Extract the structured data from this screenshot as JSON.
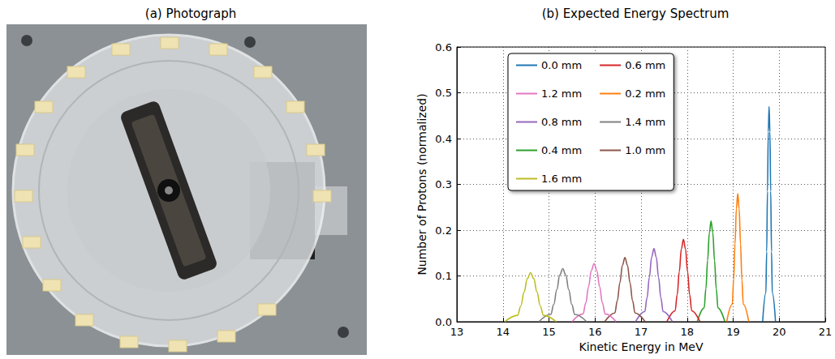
{
  "photo": {
    "title": "(a) Photograph"
  },
  "chart_data": {
    "type": "line",
    "title": "(b) Expected Energy Spectrum",
    "xlabel": "Kinetic Energy in MeV",
    "ylabel": "Number of Protons (normalized)",
    "xlim": [
      13,
      21
    ],
    "xticks": [
      13,
      14,
      15,
      16,
      17,
      18,
      19,
      20,
      21
    ],
    "ylim": [
      0,
      0.6
    ],
    "yticks": [
      {
        "value": 0,
        "label": "0.0"
      },
      0.1,
      0.2,
      0.3,
      0.4,
      0.5,
      0.6
    ],
    "grid": true,
    "legend": "top",
    "series": [
      {
        "name": "0.0 mm",
        "color": "#1f77b4",
        "x": [
          19.64,
          19.71,
          19.728,
          19.745,
          19.763,
          19.78,
          19.798,
          19.815,
          19.833,
          19.85,
          19.92
        ],
        "values": [
          0,
          0.063,
          0.153,
          0.285,
          0.415,
          0.47,
          0.415,
          0.285,
          0.153,
          0.063,
          0
        ]
      },
      {
        "name": "0.2 mm",
        "color": "#ff7f0e",
        "x": [
          18.86,
          18.98,
          19.01,
          19.04,
          19.07,
          19.1,
          19.13,
          19.16,
          19.19,
          19.22,
          19.34
        ],
        "values": [
          0,
          0.038,
          0.091,
          0.17,
          0.247,
          0.28,
          0.247,
          0.17,
          0.091,
          0.038,
          0
        ]
      },
      {
        "name": "0.4 mm",
        "color": "#2ca02c",
        "x": [
          18.22,
          18.37,
          18.408,
          18.445,
          18.483,
          18.52,
          18.558,
          18.595,
          18.633,
          18.67,
          18.82
        ],
        "values": [
          0,
          0.03,
          0.072,
          0.134,
          0.194,
          0.22,
          0.194,
          0.134,
          0.072,
          0.03,
          0
        ]
      },
      {
        "name": "0.6 mm",
        "color": "#d62728",
        "x": [
          17.56,
          17.74,
          17.785,
          17.83,
          17.875,
          17.92,
          17.965,
          18.01,
          18.055,
          18.1,
          18.28
        ],
        "values": [
          0,
          0.024,
          0.059,
          0.109,
          0.159,
          0.18,
          0.159,
          0.109,
          0.059,
          0.024,
          0
        ]
      },
      {
        "name": "0.8 mm",
        "color": "#9467bd",
        "x": [
          16.88,
          17.08,
          17.13,
          17.18,
          17.23,
          17.28,
          17.33,
          17.38,
          17.43,
          17.48,
          17.68
        ],
        "values": [
          0,
          0.022,
          0.052,
          0.097,
          0.141,
          0.16,
          0.141,
          0.097,
          0.052,
          0.022,
          0
        ]
      },
      {
        "name": "1.0 mm",
        "color": "#8c564b",
        "x": [
          16.21,
          16.43,
          16.485,
          16.54,
          16.595,
          16.65,
          16.705,
          16.76,
          16.815,
          16.87,
          17.09
        ],
        "values": [
          0,
          0.019,
          0.046,
          0.085,
          0.123,
          0.14,
          0.123,
          0.085,
          0.046,
          0.019,
          0
        ]
      },
      {
        "name": "1.2 mm",
        "color": "#e377c2",
        "x": [
          15.5,
          15.74,
          15.8,
          15.86,
          15.92,
          15.98,
          16.04,
          16.1,
          16.16,
          16.22,
          16.46
        ],
        "values": [
          0,
          0.017,
          0.041,
          0.077,
          0.112,
          0.127,
          0.112,
          0.077,
          0.041,
          0.017,
          0
        ]
      },
      {
        "name": "1.4 mm",
        "color": "#7f7f7f",
        "x": [
          14.78,
          15.04,
          15.105,
          15.17,
          15.235,
          15.3,
          15.365,
          15.43,
          15.495,
          15.56,
          15.82
        ],
        "values": [
          0,
          0.016,
          0.038,
          0.07,
          0.102,
          0.116,
          0.102,
          0.07,
          0.038,
          0.016,
          0
        ]
      },
      {
        "name": "1.6 mm",
        "color": "#bcbd22",
        "x": [
          14.04,
          14.32,
          14.39,
          14.46,
          14.53,
          14.6,
          14.67,
          14.74,
          14.81,
          14.88,
          15.16
        ],
        "values": [
          0,
          0.014,
          0.035,
          0.065,
          0.094,
          0.107,
          0.094,
          0.065,
          0.035,
          0.014,
          0
        ]
      }
    ]
  }
}
